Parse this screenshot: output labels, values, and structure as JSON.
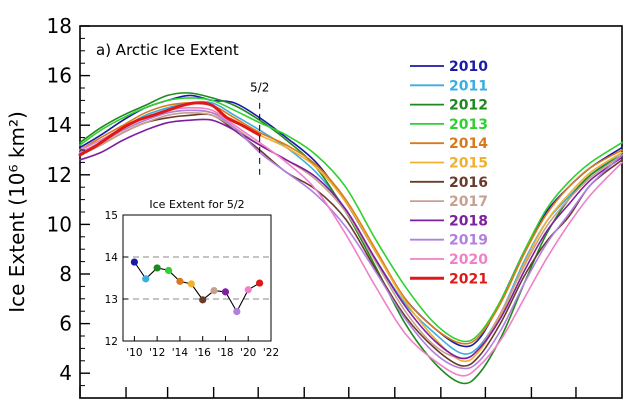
{
  "chart_data": {
    "type": "line",
    "title": "a) Arctic Ice Extent",
    "ylabel": "Ice Extent (10⁶ km²)",
    "xlabel": "",
    "x_unit": "day of year",
    "xlim": [
      1,
      366
    ],
    "ylim": [
      3,
      18
    ],
    "yticks": [
      4,
      6,
      8,
      10,
      12,
      14,
      16,
      18
    ],
    "grid": false,
    "legend_placement": "upper-right",
    "annotation": {
      "label": "5/2",
      "day": 122
    },
    "series": [
      {
        "name": "2010",
        "color": "#1a1aa8",
        "points": [
          [
            1,
            13.1
          ],
          [
            15,
            13.6
          ],
          [
            30,
            14.2
          ],
          [
            45,
            14.7
          ],
          [
            60,
            15.0
          ],
          [
            75,
            15.2
          ],
          [
            90,
            15.0
          ],
          [
            105,
            14.9
          ],
          [
            122,
            14.3
          ],
          [
            140,
            13.5
          ],
          [
            160,
            12.5
          ],
          [
            180,
            10.9
          ],
          [
            200,
            8.9
          ],
          [
            220,
            7.0
          ],
          [
            240,
            5.8
          ],
          [
            258,
            5.1
          ],
          [
            270,
            5.4
          ],
          [
            285,
            7.0
          ],
          [
            300,
            8.9
          ],
          [
            315,
            10.5
          ],
          [
            330,
            11.5
          ],
          [
            345,
            12.3
          ],
          [
            366,
            13.1
          ]
        ]
      },
      {
        "name": "2011",
        "color": "#3aaee0",
        "points": [
          [
            1,
            13.0
          ],
          [
            15,
            13.4
          ],
          [
            30,
            13.9
          ],
          [
            45,
            14.4
          ],
          [
            60,
            14.7
          ],
          [
            75,
            14.9
          ],
          [
            90,
            14.9
          ],
          [
            105,
            14.4
          ],
          [
            122,
            13.8
          ],
          [
            140,
            13.1
          ],
          [
            160,
            12.1
          ],
          [
            180,
            10.6
          ],
          [
            200,
            8.6
          ],
          [
            220,
            6.8
          ],
          [
            240,
            5.6
          ],
          [
            258,
            4.8
          ],
          [
            270,
            5.1
          ],
          [
            285,
            6.5
          ],
          [
            300,
            8.5
          ],
          [
            315,
            10.1
          ],
          [
            330,
            11.1
          ],
          [
            345,
            12.0
          ],
          [
            366,
            12.9
          ]
        ]
      },
      {
        "name": "2012",
        "color": "#1e8a1e",
        "points": [
          [
            1,
            13.3
          ],
          [
            15,
            13.9
          ],
          [
            30,
            14.4
          ],
          [
            45,
            14.8
          ],
          [
            60,
            15.2
          ],
          [
            75,
            15.3
          ],
          [
            90,
            15.1
          ],
          [
            105,
            14.8
          ],
          [
            122,
            14.2
          ],
          [
            140,
            13.4
          ],
          [
            160,
            12.3
          ],
          [
            180,
            10.5
          ],
          [
            200,
            8.3
          ],
          [
            220,
            6.0
          ],
          [
            240,
            4.4
          ],
          [
            258,
            3.6
          ],
          [
            270,
            4.0
          ],
          [
            285,
            5.5
          ],
          [
            300,
            7.6
          ],
          [
            315,
            9.6
          ],
          [
            330,
            11.0
          ],
          [
            345,
            12.0
          ],
          [
            366,
            12.8
          ]
        ]
      },
      {
        "name": "2013",
        "color": "#2fd02f",
        "points": [
          [
            1,
            13.2
          ],
          [
            15,
            13.8
          ],
          [
            30,
            14.3
          ],
          [
            45,
            14.7
          ],
          [
            60,
            15.0
          ],
          [
            75,
            15.1
          ],
          [
            90,
            15.0
          ],
          [
            105,
            14.6
          ],
          [
            122,
            14.1
          ],
          [
            140,
            13.6
          ],
          [
            160,
            12.8
          ],
          [
            180,
            11.5
          ],
          [
            200,
            9.4
          ],
          [
            220,
            7.5
          ],
          [
            240,
            6.0
          ],
          [
            258,
            5.3
          ],
          [
            270,
            5.6
          ],
          [
            285,
            7.0
          ],
          [
            300,
            8.9
          ],
          [
            315,
            10.6
          ],
          [
            330,
            11.7
          ],
          [
            345,
            12.5
          ],
          [
            366,
            13.3
          ]
        ]
      },
      {
        "name": "2014",
        "color": "#d97a1a",
        "points": [
          [
            1,
            13.0
          ],
          [
            15,
            13.5
          ],
          [
            30,
            14.0
          ],
          [
            45,
            14.5
          ],
          [
            60,
            14.8
          ],
          [
            75,
            14.9
          ],
          [
            90,
            14.8
          ],
          [
            105,
            14.3
          ],
          [
            122,
            13.7
          ],
          [
            140,
            13.2
          ],
          [
            160,
            12.4
          ],
          [
            180,
            11.0
          ],
          [
            200,
            9.0
          ],
          [
            220,
            7.0
          ],
          [
            240,
            5.8
          ],
          [
            258,
            5.2
          ],
          [
            270,
            5.5
          ],
          [
            285,
            6.9
          ],
          [
            300,
            8.8
          ],
          [
            315,
            10.4
          ],
          [
            330,
            11.5
          ],
          [
            345,
            12.3
          ],
          [
            366,
            13.0
          ]
        ]
      },
      {
        "name": "2015",
        "color": "#f0b030",
        "points": [
          [
            1,
            12.9
          ],
          [
            15,
            13.3
          ],
          [
            30,
            13.8
          ],
          [
            45,
            14.2
          ],
          [
            60,
            14.5
          ],
          [
            75,
            14.6
          ],
          [
            90,
            14.5
          ],
          [
            105,
            14.2
          ],
          [
            122,
            13.6
          ],
          [
            140,
            13.1
          ],
          [
            160,
            12.3
          ],
          [
            180,
            10.9
          ],
          [
            200,
            8.9
          ],
          [
            220,
            6.9
          ],
          [
            240,
            5.4
          ],
          [
            258,
            4.5
          ],
          [
            270,
            4.9
          ],
          [
            285,
            6.4
          ],
          [
            300,
            8.4
          ],
          [
            315,
            10.1
          ],
          [
            330,
            11.2
          ],
          [
            345,
            12.1
          ],
          [
            366,
            12.9
          ]
        ]
      },
      {
        "name": "2016",
        "color": "#6b3a2a",
        "points": [
          [
            1,
            12.8
          ],
          [
            15,
            13.2
          ],
          [
            30,
            13.7
          ],
          [
            45,
            14.1
          ],
          [
            60,
            14.3
          ],
          [
            75,
            14.4
          ],
          [
            90,
            14.4
          ],
          [
            105,
            13.8
          ],
          [
            122,
            13.0
          ],
          [
            140,
            12.1
          ],
          [
            160,
            11.4
          ],
          [
            180,
            10.2
          ],
          [
            200,
            8.2
          ],
          [
            220,
            6.3
          ],
          [
            240,
            5.0
          ],
          [
            258,
            4.3
          ],
          [
            270,
            4.7
          ],
          [
            285,
            6.1
          ],
          [
            300,
            7.9
          ],
          [
            315,
            9.3
          ],
          [
            330,
            10.3
          ],
          [
            345,
            11.6
          ],
          [
            366,
            12.6
          ]
        ]
      },
      {
        "name": "2017",
        "color": "#c8a090",
        "points": [
          [
            1,
            12.8
          ],
          [
            15,
            13.2
          ],
          [
            30,
            13.7
          ],
          [
            45,
            14.1
          ],
          [
            60,
            14.4
          ],
          [
            75,
            14.5
          ],
          [
            90,
            14.4
          ],
          [
            105,
            13.9
          ],
          [
            122,
            13.2
          ],
          [
            140,
            12.6
          ],
          [
            160,
            11.8
          ],
          [
            180,
            10.5
          ],
          [
            200,
            8.5
          ],
          [
            220,
            6.5
          ],
          [
            240,
            5.1
          ],
          [
            258,
            4.6
          ],
          [
            270,
            5.0
          ],
          [
            285,
            6.5
          ],
          [
            300,
            8.3
          ],
          [
            315,
            9.9
          ],
          [
            330,
            11.0
          ],
          [
            345,
            11.9
          ],
          [
            366,
            12.8
          ]
        ]
      },
      {
        "name": "2018",
        "color": "#7d1fa0",
        "points": [
          [
            1,
            12.6
          ],
          [
            15,
            12.9
          ],
          [
            30,
            13.4
          ],
          [
            45,
            13.8
          ],
          [
            60,
            14.1
          ],
          [
            75,
            14.2
          ],
          [
            90,
            14.2
          ],
          [
            105,
            13.8
          ],
          [
            122,
            13.2
          ],
          [
            140,
            12.6
          ],
          [
            160,
            11.9
          ],
          [
            180,
            10.6
          ],
          [
            200,
            8.6
          ],
          [
            220,
            6.7
          ],
          [
            240,
            5.3
          ],
          [
            258,
            4.6
          ],
          [
            270,
            5.0
          ],
          [
            285,
            6.3
          ],
          [
            300,
            8.1
          ],
          [
            315,
            9.7
          ],
          [
            330,
            10.8
          ],
          [
            345,
            11.8
          ],
          [
            366,
            12.7
          ]
        ]
      },
      {
        "name": "2019",
        "color": "#b080e0",
        "points": [
          [
            1,
            12.9
          ],
          [
            15,
            13.3
          ],
          [
            30,
            13.8
          ],
          [
            45,
            14.2
          ],
          [
            60,
            14.5
          ],
          [
            75,
            14.6
          ],
          [
            90,
            14.5
          ],
          [
            105,
            13.9
          ],
          [
            122,
            12.9
          ],
          [
            140,
            12.1
          ],
          [
            160,
            11.2
          ],
          [
            180,
            9.9
          ],
          [
            200,
            8.1
          ],
          [
            220,
            6.2
          ],
          [
            240,
            4.8
          ],
          [
            258,
            4.2
          ],
          [
            270,
            4.5
          ],
          [
            285,
            5.8
          ],
          [
            300,
            7.6
          ],
          [
            315,
            9.2
          ],
          [
            330,
            10.4
          ],
          [
            345,
            11.6
          ],
          [
            366,
            12.8
          ]
        ]
      },
      {
        "name": "2020",
        "color": "#f080c8",
        "points": [
          [
            1,
            13.0
          ],
          [
            15,
            13.4
          ],
          [
            30,
            13.9
          ],
          [
            45,
            14.3
          ],
          [
            60,
            14.6
          ],
          [
            75,
            14.7
          ],
          [
            90,
            14.6
          ],
          [
            105,
            14.0
          ],
          [
            122,
            13.3
          ],
          [
            140,
            12.5
          ],
          [
            160,
            11.4
          ],
          [
            180,
            9.6
          ],
          [
            200,
            7.5
          ],
          [
            220,
            5.6
          ],
          [
            240,
            4.5
          ],
          [
            258,
            3.9
          ],
          [
            270,
            4.3
          ],
          [
            285,
            5.4
          ],
          [
            300,
            7.0
          ],
          [
            315,
            8.6
          ],
          [
            330,
            10.0
          ],
          [
            345,
            11.2
          ],
          [
            366,
            12.5
          ]
        ]
      },
      {
        "name": "2021",
        "color": "#e01818",
        "points": [
          [
            1,
            12.8
          ],
          [
            10,
            13.1
          ],
          [
            20,
            13.5
          ],
          [
            30,
            13.9
          ],
          [
            40,
            14.2
          ],
          [
            50,
            14.4
          ],
          [
            60,
            14.6
          ],
          [
            70,
            14.8
          ],
          [
            80,
            14.9
          ],
          [
            90,
            14.8
          ],
          [
            100,
            14.3
          ],
          [
            110,
            14.0
          ],
          [
            122,
            13.6
          ]
        ]
      }
    ],
    "inset": {
      "title": "Ice Extent for 5/2",
      "ylim": [
        12,
        15
      ],
      "yticks": [
        12,
        13,
        14,
        15
      ],
      "xlim": [
        2009,
        2022
      ],
      "xticks": [
        2010,
        2012,
        2014,
        2016,
        2018,
        2020,
        2022
      ],
      "xtick_labels": [
        "'10",
        "'12",
        "'14",
        "'16",
        "'18",
        "'20",
        "'22"
      ],
      "dashed_reference_lines": [
        13,
        14
      ],
      "points": [
        {
          "year": 2010,
          "value": 13.88
        },
        {
          "year": 2011,
          "value": 13.48
        },
        {
          "year": 2012,
          "value": 13.74
        },
        {
          "year": 2013,
          "value": 13.68
        },
        {
          "year": 2014,
          "value": 13.42
        },
        {
          "year": 2015,
          "value": 13.36
        },
        {
          "year": 2016,
          "value": 12.98
        },
        {
          "year": 2017,
          "value": 13.2
        },
        {
          "year": 2018,
          "value": 13.17
        },
        {
          "year": 2019,
          "value": 12.7
        },
        {
          "year": 2020,
          "value": 13.22
        },
        {
          "year": 2021,
          "value": 13.38
        }
      ]
    }
  }
}
